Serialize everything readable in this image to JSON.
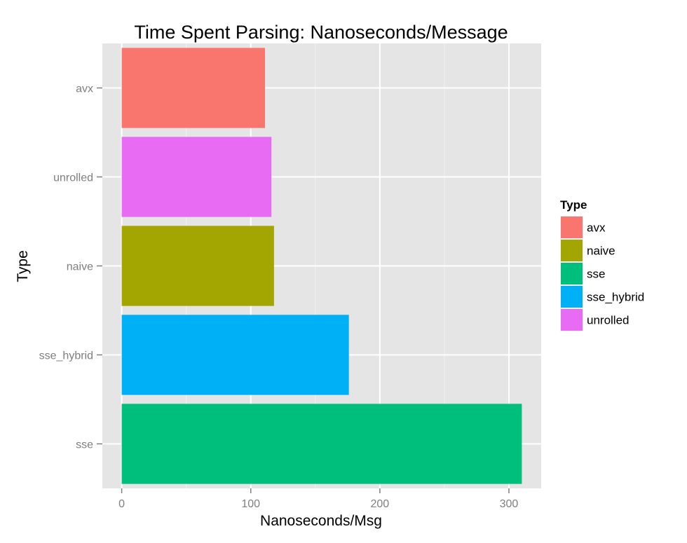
{
  "chart_data": {
    "type": "bar",
    "orientation": "horizontal",
    "title": "Time Spent Parsing: Nanoseconds/Message",
    "xlabel": "Nanoseconds/Msg",
    "ylabel": "Type",
    "categories": [
      "avx",
      "unrolled",
      "naive",
      "sse_hybrid",
      "sse"
    ],
    "values": [
      111,
      116,
      118,
      176,
      310
    ],
    "colors": [
      "#F8766D",
      "#E76BF3",
      "#A3A500",
      "#00B0F6",
      "#00BF7D"
    ],
    "xlim": [
      -15,
      325
    ],
    "xticks": [
      0,
      100,
      200,
      300
    ],
    "xticks_minor": [
      50,
      150,
      250
    ],
    "grid": true,
    "legend": {
      "title": "Type",
      "placement": "right",
      "items": [
        {
          "label": "avx",
          "color": "#F8766D"
        },
        {
          "label": "naive",
          "color": "#A3A500"
        },
        {
          "label": "sse",
          "color": "#00BF7D"
        },
        {
          "label": "sse_hybrid",
          "color": "#00B0F6"
        },
        {
          "label": "unrolled",
          "color": "#E76BF3"
        }
      ]
    },
    "panel_background": "#E5E5E5",
    "grid_color": "#FFFFFF"
  }
}
